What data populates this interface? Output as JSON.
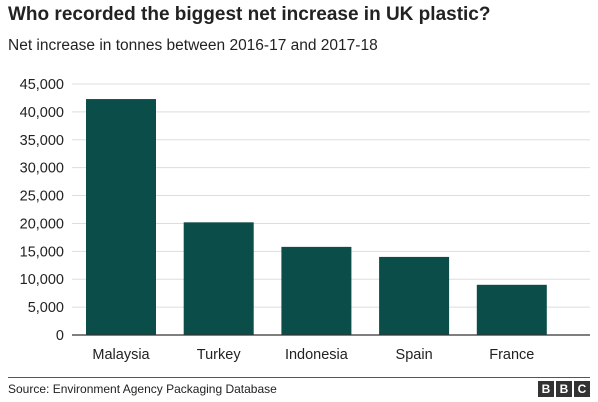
{
  "header": {
    "title": "Who recorded the biggest net increase in UK plastic?",
    "subtitle": "Net increase in tonnes between 2016-17 and 2017-18"
  },
  "footer": {
    "source": "Source: Environment Agency Packaging Database",
    "logo_letters": [
      "B",
      "B",
      "C"
    ]
  },
  "colors": {
    "bar": "#0b4d49",
    "grid": "#dddddd",
    "axis": "#333333",
    "text": "#222222"
  },
  "chart_data": {
    "type": "bar",
    "title": "Who recorded the biggest net increase in UK plastic?",
    "subtitle": "Net increase in tonnes between 2016-17 and 2017-18",
    "xlabel": "",
    "ylabel": "",
    "categories": [
      "Malaysia",
      "Turkey",
      "Indonesia",
      "Spain",
      "France"
    ],
    "values": [
      42300,
      20200,
      15800,
      14000,
      9000
    ],
    "ylim": [
      0,
      45000
    ],
    "yticks": [
      0,
      5000,
      10000,
      15000,
      20000,
      25000,
      30000,
      35000,
      40000,
      45000
    ],
    "ytick_labels": [
      "0",
      "5,000",
      "10,000",
      "15,000",
      "20,000",
      "25,000",
      "30,000",
      "35,000",
      "40,000",
      "45,000"
    ],
    "grid": true,
    "legend": "none"
  }
}
